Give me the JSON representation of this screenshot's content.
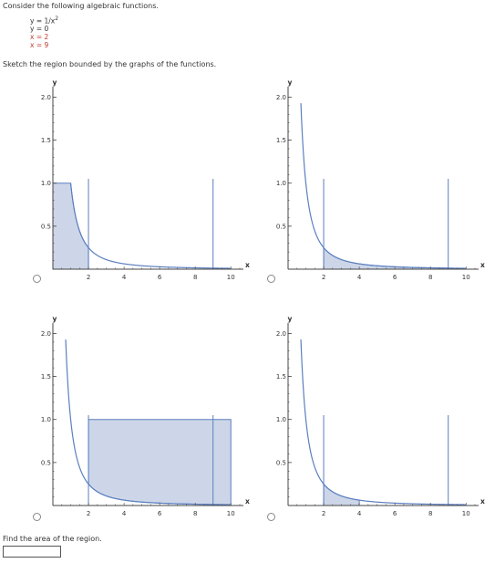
{
  "prompt": "Consider the following algebraic functions.",
  "functions": [
    {
      "text": "y = 1/x",
      "sup": "2",
      "highlight": false
    },
    {
      "text": "y = 0",
      "sup": "",
      "highlight": false
    },
    {
      "text": "x = 2",
      "sup": "",
      "highlight": true
    },
    {
      "text": "x = 9",
      "sup": "",
      "highlight": true
    }
  ],
  "sketch_instruction": "Sketch the region bounded by the graphs of the functions.",
  "area_prompt": "Find the area of the region.",
  "area_answer": "",
  "colors": {
    "region_fill": "#cdd6e8",
    "curve": "#5b7fc0",
    "axis": "#444444",
    "text": "#333333",
    "highlight": "#c0392b"
  },
  "chart_data": [
    {
      "type": "area",
      "option": "A",
      "xlabel": "x",
      "ylabel": "y",
      "xlim": [
        0,
        10.5
      ],
      "ylim": [
        0,
        2.1
      ],
      "xticks": [
        "2",
        "4",
        "6",
        "8",
        "10"
      ],
      "yticks": [
        "0.5",
        "1.0",
        "1.5",
        "2.0"
      ],
      "curve": "y = 1/x^2",
      "vertical_lines": [
        2,
        9
      ],
      "region": {
        "kind": "under_curve_capped",
        "x_from": 0,
        "x_to": 2,
        "cap": 1
      }
    },
    {
      "type": "area",
      "option": "B",
      "xlabel": "x",
      "ylabel": "y",
      "xlim": [
        0,
        10.5
      ],
      "ylim": [
        0,
        2.1
      ],
      "xticks": [
        "2",
        "4",
        "6",
        "8",
        "10"
      ],
      "yticks": [
        "0.5",
        "1.0",
        "1.5",
        "2.0"
      ],
      "curve": "y = 1/x^2",
      "vertical_lines": [
        2,
        9
      ],
      "region": {
        "kind": "under_curve",
        "x_from": 2,
        "x_to": 9
      }
    },
    {
      "type": "area",
      "option": "C",
      "xlabel": "x",
      "ylabel": "y",
      "xlim": [
        0,
        10.5
      ],
      "ylim": [
        0,
        2.1
      ],
      "xticks": [
        "2",
        "4",
        "6",
        "8",
        "10"
      ],
      "yticks": [
        "0.5",
        "1.0",
        "1.5",
        "2.0"
      ],
      "curve": "y = 1/x^2",
      "vertical_lines": [
        2,
        9
      ],
      "region": {
        "kind": "above_curve_to_line",
        "x_from": 2,
        "x_to": 10,
        "top": 1
      }
    },
    {
      "type": "area",
      "option": "D",
      "xlabel": "x",
      "ylabel": "y",
      "xlim": [
        0,
        10.5
      ],
      "ylim": [
        0,
        2.1
      ],
      "xticks": [
        "2",
        "4",
        "6",
        "8",
        "10"
      ],
      "yticks": [
        "0.5",
        "1.0",
        "1.5",
        "2.0"
      ],
      "curve": "y = 1/x^2",
      "vertical_lines": [
        2,
        9
      ],
      "region": {
        "kind": "under_curve",
        "x_from": 2,
        "x_to": 4
      }
    }
  ]
}
